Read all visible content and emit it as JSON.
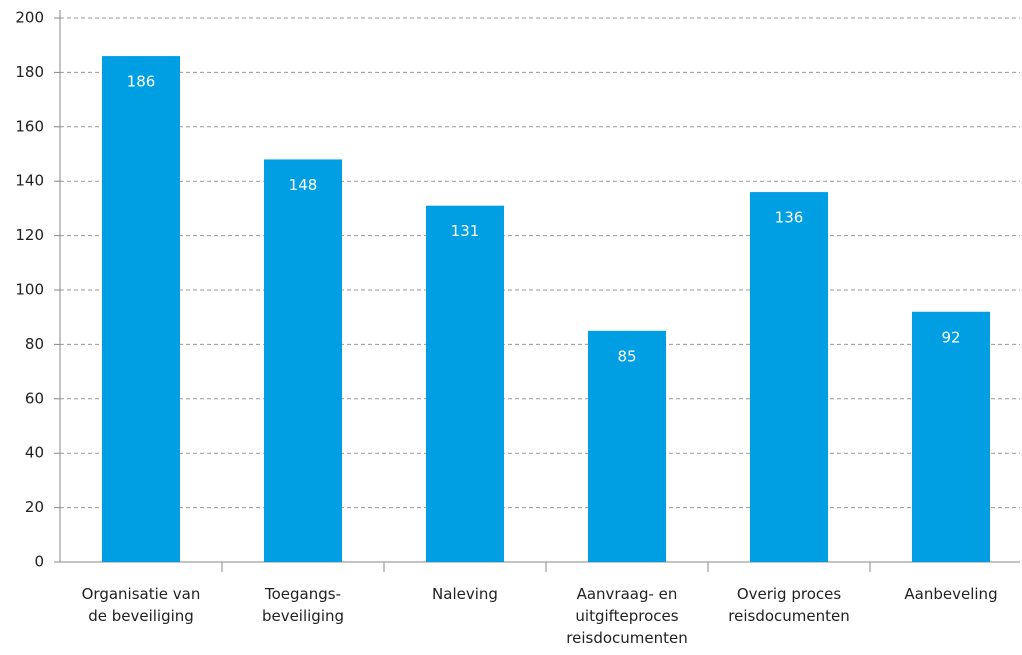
{
  "chart_data": {
    "type": "bar",
    "categories": [
      "Organisatie van\nde beveiliging",
      "Toegangs-\nbeveiliging",
      "Naleving",
      "Aanvraag- en\nuitgifteproces\nreisdocumenten",
      "Overig proces\nreisdocumenten",
      "Aanbeveling"
    ],
    "values": [
      186,
      148,
      131,
      85,
      136,
      92
    ],
    "color": "#009fe3",
    "ylim": [
      0,
      200
    ],
    "yticks": [
      0,
      20,
      40,
      60,
      80,
      100,
      120,
      140,
      160,
      180,
      200
    ],
    "grid": true
  }
}
